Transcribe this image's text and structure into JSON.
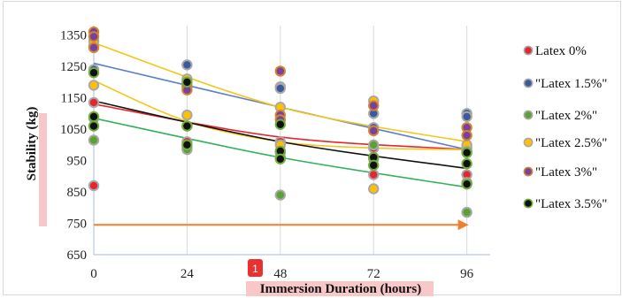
{
  "page": {
    "badge_label": "1"
  },
  "colors": {
    "highlight": "#f8c8c8",
    "badge": "#e8322f",
    "arrow": "#f07f2f",
    "axis": "#b7c9e6",
    "grid": "#d9d9d9"
  },
  "chart_data": {
    "type": "scatter",
    "title": "",
    "xlabel": "Immersion Duration (hours)",
    "ylabel": "Stability  (kg)",
    "x_ticks": [
      0,
      24,
      48,
      72,
      96
    ],
    "y_ticks": [
      650,
      750,
      850,
      950,
      1050,
      1150,
      1250,
      1350
    ],
    "xlim": [
      0,
      102
    ],
    "ylim": [
      650,
      1380
    ],
    "grid": "vertical",
    "legend_position": "right",
    "annotation_arrow": {
      "from": [
        0,
        745
      ],
      "to": [
        96,
        745
      ]
    },
    "series": [
      {
        "name": "Latex 0%",
        "fill": "#e3262f",
        "outline": "#a8a8a8",
        "points": [
          [
            0,
            1135
          ],
          [
            0,
            870
          ],
          [
            24,
            1060
          ],
          [
            24,
            1010
          ],
          [
            48,
            1010
          ],
          [
            48,
            975
          ],
          [
            72,
            990
          ],
          [
            72,
            905
          ],
          [
            96,
            990
          ],
          [
            96,
            905
          ]
        ],
        "trend": [
          [
            0,
            1130
          ],
          [
            48,
            1025
          ],
          [
            96,
            985
          ]
        ],
        "trend_color": "#e3262f"
      },
      {
        "name": "\"Latex 1.5%\"",
        "fill": "#3c5a99",
        "outline": "#a8a8a8",
        "points": [
          [
            0,
            1315
          ],
          [
            0,
            1240
          ],
          [
            24,
            1255
          ],
          [
            24,
            1190
          ],
          [
            48,
            1185
          ],
          [
            48,
            1180
          ],
          [
            72,
            1100
          ],
          [
            72,
            1055
          ],
          [
            96,
            1100
          ],
          [
            96,
            1090
          ]
        ],
        "trend": [
          [
            0,
            1260
          ],
          [
            48,
            1120
          ],
          [
            96,
            985
          ]
        ],
        "trend_color": "#5b7fc7"
      },
      {
        "name": "\"Latex 2%\"",
        "fill": "#5aa333",
        "outline": "#a8a8a8",
        "points": [
          [
            0,
            1085
          ],
          [
            0,
            1015
          ],
          [
            24,
            990
          ],
          [
            24,
            985
          ],
          [
            48,
            840
          ],
          [
            48,
            960
          ],
          [
            72,
            1000
          ],
          [
            72,
            955
          ],
          [
            96,
            785
          ],
          [
            96,
            880
          ]
        ],
        "trend": [
          [
            0,
            1085
          ],
          [
            48,
            960
          ],
          [
            96,
            865
          ]
        ],
        "trend_color": "#2fb35a"
      },
      {
        "name": "\"Latex 2.5%\"",
        "fill": "#ffc000",
        "outline": "#a8a8a8",
        "points": [
          [
            0,
            1330
          ],
          [
            0,
            1190
          ],
          [
            24,
            1210
          ],
          [
            24,
            1095
          ],
          [
            48,
            1120
          ],
          [
            48,
            1000
          ],
          [
            72,
            1140
          ],
          [
            72,
            860
          ],
          [
            96,
            1000
          ],
          [
            96,
            980
          ]
        ],
        "trend": [
          [
            0,
            1325
          ],
          [
            48,
            1120
          ],
          [
            96,
            1010
          ]
        ],
        "trend_color": "#f5c518",
        "trend2": [
          [
            0,
            1205
          ],
          [
            24,
            1075
          ],
          [
            48,
            1010
          ],
          [
            72,
            990
          ],
          [
            96,
            985
          ]
        ]
      },
      {
        "name": "\"Latex 3%\"",
        "fill": "#7a3fa0",
        "outline": "#d0862e",
        "points": [
          [
            0,
            1360
          ],
          [
            0,
            1345
          ],
          [
            0,
            1310
          ],
          [
            24,
            1185
          ],
          [
            24,
            1175
          ],
          [
            48,
            1235
          ],
          [
            48,
            1095
          ],
          [
            48,
            1080
          ],
          [
            72,
            1125
          ],
          [
            72,
            1045
          ],
          [
            96,
            1055
          ],
          [
            96,
            1030
          ]
        ],
        "trend": [],
        "trend_color": ""
      },
      {
        "name": "\"Latex 3.5%\"",
        "fill": "#111111",
        "outline": "#6fae3a",
        "points": [
          [
            0,
            1230
          ],
          [
            0,
            1090
          ],
          [
            0,
            1060
          ],
          [
            24,
            1200
          ],
          [
            24,
            1060
          ],
          [
            24,
            1000
          ],
          [
            48,
            1065
          ],
          [
            48,
            980
          ],
          [
            48,
            955
          ],
          [
            72,
            960
          ],
          [
            72,
            935
          ],
          [
            96,
            975
          ],
          [
            96,
            940
          ],
          [
            96,
            875
          ]
        ],
        "trend": [
          [
            0,
            1140
          ],
          [
            48,
            1010
          ],
          [
            96,
            925
          ]
        ],
        "trend_color": "#111111"
      }
    ]
  }
}
